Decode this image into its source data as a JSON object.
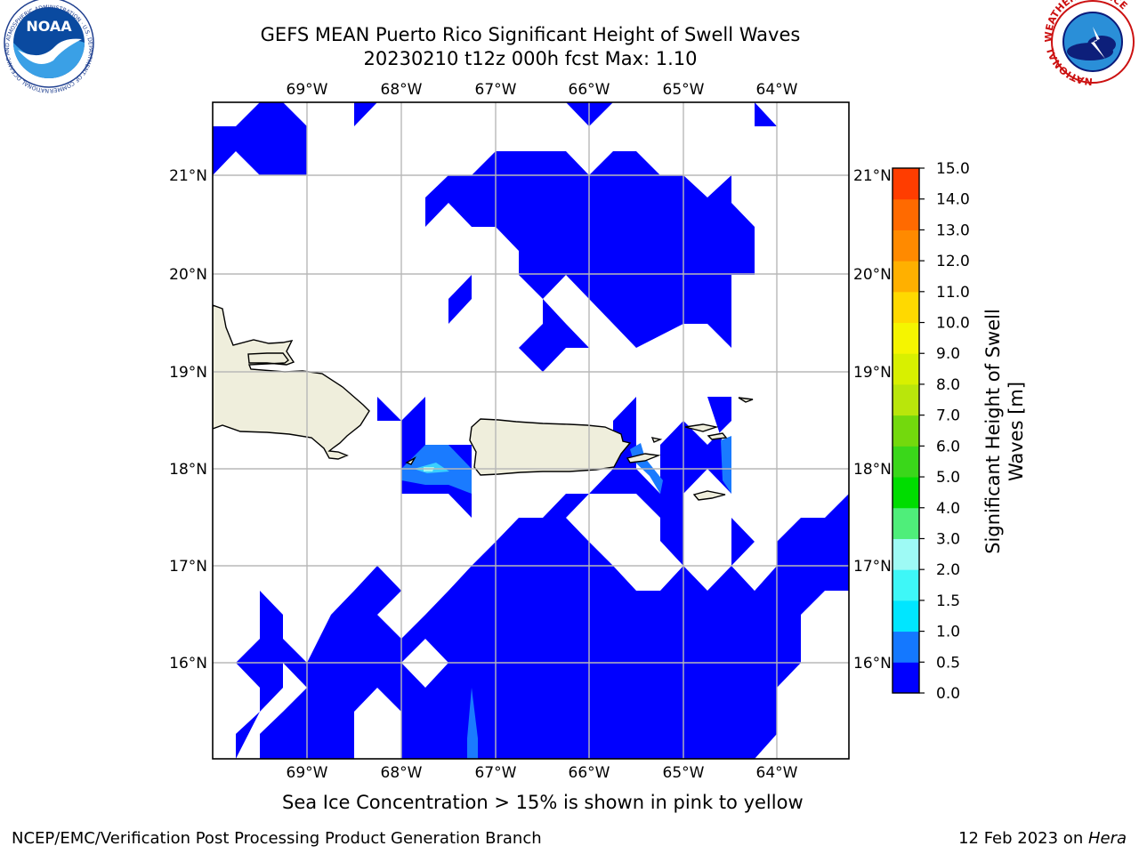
{
  "title": {
    "line1": "GEFS MEAN Puerto Rico Significant Height of Swell Waves",
    "line2": "20230210 t12z 000h fcst   Max: 1.10"
  },
  "map": {
    "lon_labels": [
      "69°W",
      "68°W",
      "67°W",
      "66°W",
      "65°W",
      "64°W"
    ],
    "lat_labels": [
      "21°N",
      "20°N",
      "19°N",
      "18°N",
      "17°N",
      "16°N"
    ],
    "land_color": "#efeedc",
    "swell_color_low": "#0000ff",
    "swell_color_mid": "#1a7bff",
    "swell_color_high": "#41ffff"
  },
  "colorbar": {
    "label": "Significant Height of Swell Waves [m]",
    "label_line1": "Significant Height of Swell",
    "label_line2": "Waves [m]",
    "ticks": [
      "0.0",
      "0.5",
      "1.0",
      "1.5",
      "2.0",
      "3.0",
      "4.0",
      "5.0",
      "6.0",
      "7.0",
      "8.0",
      "9.0",
      "10.0",
      "11.0",
      "12.0",
      "13.0",
      "14.0",
      "15.0"
    ],
    "colors": [
      "#0000ff",
      "#1478ff",
      "#00e6ff",
      "#3ef7f7",
      "#9efaf5",
      "#4fee7a",
      "#00dd00",
      "#3ad71a",
      "#73d90d",
      "#b9e60b",
      "#d8f000",
      "#f5f500",
      "#ffd900",
      "#ffb000",
      "#ff8a00",
      "#ff6a00",
      "#ff3d00",
      "#ff0000"
    ]
  },
  "note": "Sea Ice Concentration > 15% is shown in pink to yellow",
  "footer": {
    "left": "NCEP/EMC/Verification Post Processing Product Generation Branch",
    "date": "12 Feb 2023 on ",
    "machine": "Hera"
  },
  "logos": {
    "noaa_text": "NOAA",
    "noaa_ring": "NATIONAL OCEANIC AND ATMOSPHERIC ADMINISTRATION · U.S. DEPARTMENT OF COMMERCE",
    "nws_ring": "NATIONAL WEATHER SERVICE"
  }
}
